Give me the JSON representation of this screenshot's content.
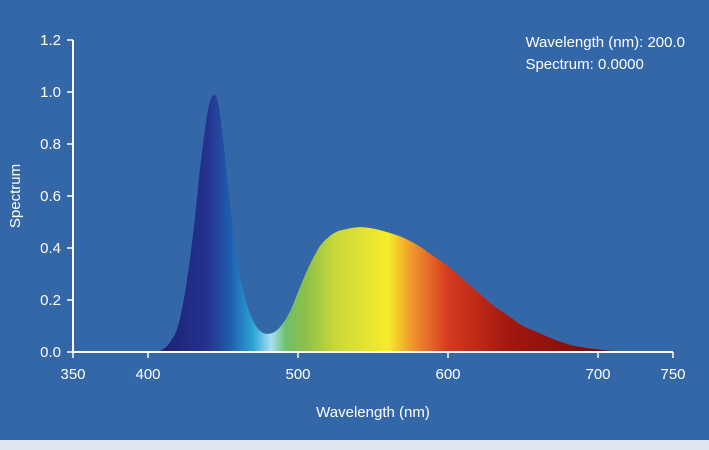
{
  "readout": {
    "wavelength_label": "Wavelength (nm): ",
    "wavelength_value": "200.0",
    "spectrum_label": "Spectrum: ",
    "spectrum_value": "0.0000"
  },
  "chart_data": {
    "type": "area",
    "title": "",
    "xlabel": "Wavelength (nm)",
    "ylabel": "Spectrum",
    "xlim": [
      350,
      750
    ],
    "ylim": [
      0,
      1.2
    ],
    "xticks": [
      350,
      400,
      500,
      600,
      700,
      750
    ],
    "yticks": [
      0.0,
      0.2,
      0.4,
      0.6,
      0.8,
      1.0,
      1.2
    ],
    "xtick_labels": [
      "350",
      "400",
      "500",
      "600",
      "700",
      "750"
    ],
    "ytick_labels": [
      "0.0",
      "0.2",
      "0.4",
      "0.6",
      "0.8",
      "1.0",
      "1.2"
    ],
    "grid": false,
    "fill": "visible-spectrum gradient",
    "series": [
      {
        "x": [
          405,
          410,
          415,
          420,
          425,
          430,
          435,
          440,
          444,
          447,
          450,
          455,
          460,
          465,
          470,
          475,
          480,
          485,
          490,
          495,
          500,
          505,
          510,
          515,
          520,
          525,
          530,
          540,
          550,
          560,
          570,
          580,
          590,
          600,
          610,
          620,
          630,
          640,
          650,
          660,
          670,
          680,
          690,
          700,
          710,
          715
        ],
        "y": [
          0.0,
          0.01,
          0.04,
          0.1,
          0.24,
          0.45,
          0.72,
          0.93,
          0.99,
          0.95,
          0.82,
          0.55,
          0.33,
          0.2,
          0.12,
          0.08,
          0.07,
          0.08,
          0.11,
          0.16,
          0.23,
          0.3,
          0.36,
          0.41,
          0.44,
          0.46,
          0.47,
          0.48,
          0.475,
          0.46,
          0.44,
          0.41,
          0.37,
          0.33,
          0.28,
          0.23,
          0.18,
          0.14,
          0.1,
          0.075,
          0.05,
          0.03,
          0.018,
          0.01,
          0.004,
          0.0
        ]
      }
    ]
  }
}
